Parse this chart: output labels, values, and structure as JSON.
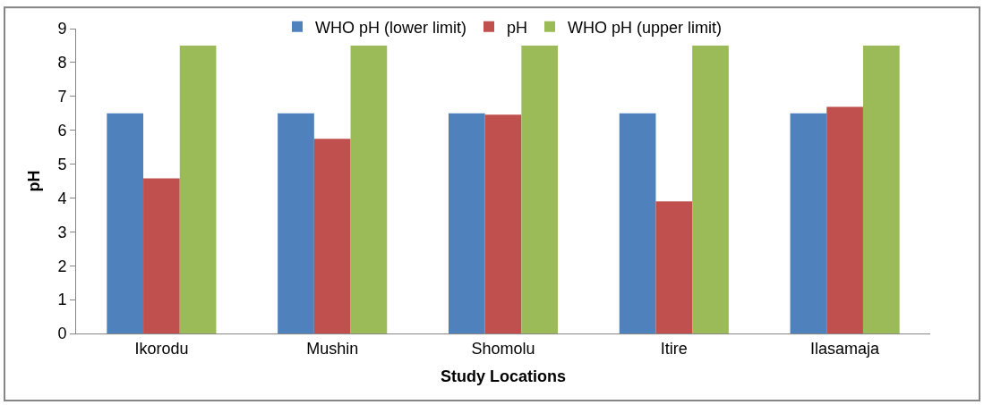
{
  "chart_data": {
    "type": "bar",
    "xlabel": "Study Locations",
    "ylabel": "pH",
    "categories": [
      "Ikorodu",
      "Mushin",
      "Shomolu",
      "Itire",
      "Ilasamaja"
    ],
    "series": [
      {
        "name": "WHO pH (lower limit)",
        "color": "#4f81bd",
        "values": [
          6.5,
          6.5,
          6.5,
          6.5,
          6.5
        ]
      },
      {
        "name": "pH",
        "color": "#c0504d",
        "values": [
          4.58,
          5.75,
          6.46,
          3.9,
          6.69
        ]
      },
      {
        "name": "WHO pH (upper limit)",
        "color": "#9bbb59",
        "values": [
          8.5,
          8.5,
          8.5,
          8.5,
          8.5
        ]
      }
    ],
    "ylim": [
      0,
      9
    ],
    "yticks": [
      0,
      1,
      2,
      3,
      4,
      5,
      6,
      7,
      8,
      9
    ],
    "legend": "top"
  }
}
